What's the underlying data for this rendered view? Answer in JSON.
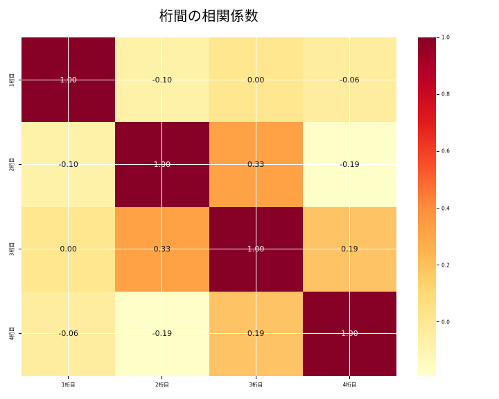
{
  "title": "桁間の相関係数",
  "chart_data": {
    "type": "heatmap",
    "title": "桁間の相関係数",
    "x_categories": [
      "1桁目",
      "2桁目",
      "3桁目",
      "4桁目"
    ],
    "y_categories": [
      "1桁目",
      "2桁目",
      "3桁目",
      "4桁目"
    ],
    "matrix": [
      [
        1.0,
        -0.1,
        0.0,
        -0.06
      ],
      [
        -0.1,
        1.0,
        0.33,
        -0.19
      ],
      [
        0.0,
        0.33,
        1.0,
        0.19
      ],
      [
        -0.06,
        -0.19,
        0.19,
        1.0
      ]
    ],
    "cell_labels": [
      [
        "1.00",
        "-0.10",
        "0.00",
        "-0.06"
      ],
      [
        "-0.10",
        "1.00",
        "0.33",
        "-0.19"
      ],
      [
        "0.00",
        "0.33",
        "1.00",
        "0.19"
      ],
      [
        "-0.06",
        "-0.19",
        "0.19",
        "1.00"
      ]
    ],
    "cell_colors": [
      [
        "#870127",
        "#fef2a9",
        "#fee78e",
        "#feed9f"
      ],
      [
        "#fef2a9",
        "#870127",
        "#fea245",
        "#feffc8"
      ],
      [
        "#fee78e",
        "#fea245",
        "#870127",
        "#fdc364"
      ],
      [
        "#feed9f",
        "#feffc8",
        "#fdc364",
        "#870127"
      ]
    ],
    "cell_text_colors": [
      [
        "#f2f2f2",
        "#111111",
        "#111111",
        "#111111"
      ],
      [
        "#111111",
        "#f2f2f2",
        "#111111",
        "#111111"
      ],
      [
        "#111111",
        "#111111",
        "#f2f2f2",
        "#111111"
      ],
      [
        "#111111",
        "#111111",
        "#111111",
        "#f2f2f2"
      ]
    ],
    "colormap": "YlOrRd",
    "grid_color": "#ffffff",
    "background_color": "#ffffff",
    "colorbar": {
      "vmin": -0.19,
      "vmax": 1.0,
      "tick_values": [
        1.0,
        0.8,
        0.6,
        0.4,
        0.2,
        0.0
      ],
      "tick_labels": [
        "1.0",
        "0.8",
        "0.6",
        "0.4",
        "0.2",
        "0.0"
      ],
      "gradient_bottom_to_top": [
        "#ffffcc",
        "#ffeda0",
        "#fed976",
        "#feb24c",
        "#fd8d3c",
        "#fc4e2a",
        "#e31a1c",
        "#bd0026",
        "#870127"
      ]
    }
  }
}
